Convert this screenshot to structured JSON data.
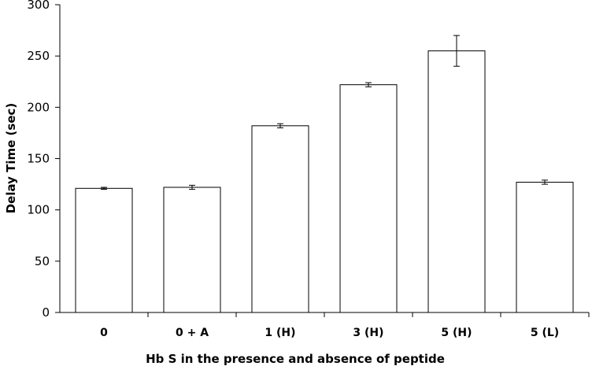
{
  "chart_data": {
    "type": "bar",
    "title": "",
    "xlabel": "Hb S in the presence and absence of peptide",
    "ylabel": "Delay Time (sec)",
    "categories": [
      "0",
      "0 + A",
      "1 (H)",
      "3 (H)",
      "5 (H)",
      "5 (L)"
    ],
    "values": [
      121,
      122,
      182,
      222,
      255,
      127
    ],
    "error": [
      1,
      2,
      2,
      2,
      15,
      2
    ],
    "ylim": [
      0,
      300
    ],
    "yticks": [
      0,
      50,
      100,
      150,
      200,
      250,
      300
    ],
    "grid": false,
    "legend": "none",
    "colors": {
      "bar_fill": "#ffffff",
      "bar_stroke": "#000000",
      "axis": "#000000"
    }
  }
}
